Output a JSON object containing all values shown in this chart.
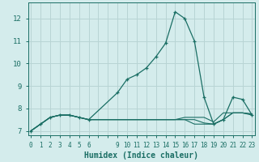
{
  "xlabel": "Humidex (Indice chaleur)",
  "background_color": "#d4ecec",
  "grid_color": "#b8d4d4",
  "line_color": "#1a6e64",
  "x_values": [
    0,
    1,
    2,
    3,
    4,
    5,
    6,
    9,
    10,
    11,
    12,
    13,
    14,
    15,
    16,
    17,
    18,
    19,
    20,
    21,
    22,
    23
  ],
  "y_values": [
    7.0,
    7.3,
    7.6,
    7.7,
    7.7,
    7.6,
    7.5,
    8.7,
    9.3,
    9.5,
    9.8,
    10.3,
    10.9,
    12.3,
    12.0,
    11.0,
    8.5,
    7.3,
    7.5,
    8.5,
    8.4,
    7.7
  ],
  "flat_lines": [
    {
      "x": [
        0,
        1,
        2,
        3,
        4,
        5,
        6,
        9,
        10,
        11,
        12,
        13,
        14,
        15,
        16,
        17,
        18,
        19,
        20,
        21,
        22,
        23
      ],
      "y": [
        7.0,
        7.3,
        7.6,
        7.7,
        7.7,
        7.6,
        7.5,
        7.5,
        7.5,
        7.5,
        7.5,
        7.5,
        7.5,
        7.5,
        7.6,
        7.6,
        7.6,
        7.4,
        7.8,
        7.8,
        7.8,
        7.7
      ]
    },
    {
      "x": [
        0,
        1,
        2,
        3,
        4,
        5,
        6,
        9,
        10,
        11,
        12,
        13,
        14,
        15,
        16,
        17,
        18,
        19,
        20,
        21,
        22,
        23
      ],
      "y": [
        7.0,
        7.3,
        7.6,
        7.7,
        7.7,
        7.6,
        7.5,
        7.5,
        7.5,
        7.5,
        7.5,
        7.5,
        7.5,
        7.5,
        7.5,
        7.5,
        7.35,
        7.3,
        7.5,
        7.8,
        7.8,
        7.75
      ]
    },
    {
      "x": [
        0,
        1,
        2,
        3,
        4,
        5,
        6,
        9,
        10,
        11,
        12,
        13,
        14,
        15,
        16,
        17,
        18,
        19,
        20,
        21,
        22,
        23
      ],
      "y": [
        7.0,
        7.3,
        7.6,
        7.7,
        7.7,
        7.6,
        7.5,
        7.5,
        7.5,
        7.5,
        7.5,
        7.5,
        7.5,
        7.5,
        7.5,
        7.3,
        7.3,
        7.3,
        7.5,
        7.8,
        7.8,
        7.75
      ]
    }
  ],
  "ylim": [
    6.8,
    12.7
  ],
  "xlim": [
    -0.3,
    23.3
  ],
  "yticks": [
    7,
    8,
    9,
    10,
    11,
    12
  ],
  "xticks": [
    0,
    1,
    2,
    3,
    4,
    5,
    6,
    7,
    8,
    9,
    10,
    11,
    12,
    13,
    14,
    15,
    16,
    17,
    18,
    19,
    20,
    21,
    22,
    23
  ],
  "xtick_labels": [
    "0",
    "1",
    "2",
    "3",
    "4",
    "5",
    "6",
    "",
    "",
    "9",
    "10",
    "11",
    "12",
    "13",
    "14",
    "15",
    "16",
    "17",
    "18",
    "19",
    "20",
    "21",
    "22",
    "23"
  ]
}
